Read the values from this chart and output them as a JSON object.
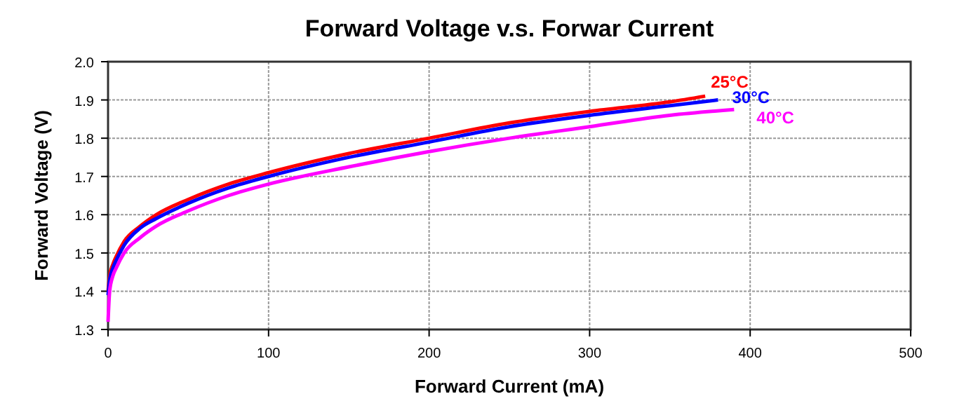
{
  "chart_data": {
    "type": "line",
    "title": "Forward Voltage v.s. Forwar Current",
    "xlabel": "Forward Current (mA)",
    "ylabel": "Forward Voltage (V)",
    "xlim": [
      0,
      500
    ],
    "xticks": [
      0,
      100,
      200,
      300,
      400,
      500
    ],
    "ylim": [
      1.3,
      2.0
    ],
    "yticks": [
      {
        "value": 1.3,
        "label": "1.3"
      },
      {
        "value": 1.4,
        "label": "1.4"
      },
      {
        "value": 1.5,
        "label": "1.5"
      },
      {
        "value": 1.6,
        "label": "1.6"
      },
      {
        "value": 1.7,
        "label": "1.7"
      },
      {
        "value": 1.8,
        "label": "1.8"
      },
      {
        "value": 1.9,
        "label": "1.9"
      },
      {
        "value": 2.0,
        "label": "2.0"
      }
    ],
    "grid": true,
    "marker": "none",
    "line_style": "solid",
    "series": [
      {
        "name": "25°C",
        "color": "#ff0000",
        "x": [
          0,
          1,
          3,
          5,
          10,
          20,
          30,
          50,
          75,
          100,
          150,
          200,
          250,
          300,
          350,
          372
        ],
        "values": [
          1.4,
          1.44,
          1.47,
          1.49,
          1.53,
          1.57,
          1.6,
          1.64,
          1.68,
          1.71,
          1.76,
          1.8,
          1.84,
          1.87,
          1.895,
          1.91
        ]
      },
      {
        "name": "30°C",
        "color": "#0000ff",
        "x": [
          0,
          1,
          3,
          5,
          10,
          20,
          30,
          50,
          75,
          100,
          150,
          200,
          250,
          300,
          350,
          380
        ],
        "values": [
          1.39,
          1.43,
          1.46,
          1.48,
          1.52,
          1.565,
          1.59,
          1.63,
          1.67,
          1.7,
          1.75,
          1.79,
          1.83,
          1.86,
          1.885,
          1.9
        ]
      },
      {
        "name": "40°C",
        "color": "#ff00ff",
        "x": [
          0,
          1,
          3,
          5,
          10,
          20,
          30,
          50,
          75,
          100,
          150,
          200,
          250,
          300,
          350,
          390
        ],
        "values": [
          1.32,
          1.4,
          1.44,
          1.46,
          1.5,
          1.54,
          1.57,
          1.61,
          1.65,
          1.68,
          1.725,
          1.765,
          1.8,
          1.83,
          1.86,
          1.875
        ]
      }
    ]
  }
}
